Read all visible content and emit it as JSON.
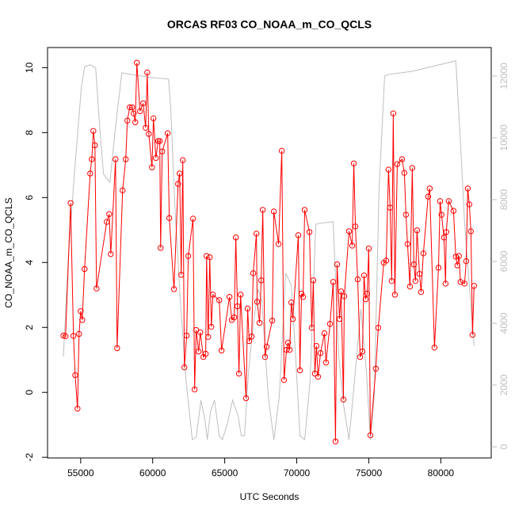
{
  "chart_data": {
    "type": "line",
    "title": "ORCAS RF03 CO_NOAA_m_CO_QCLS",
    "x_label": "UTC Seconds",
    "y_label": "CO_NOAA_m_CO_QCLS",
    "xlim": [
      52700,
      83500
    ],
    "xticks": [
      55000,
      60000,
      65000,
      70000,
      75000,
      80000
    ],
    "ylim": [
      -2.02,
      10.62
    ],
    "yticks": [
      -2,
      0,
      2,
      4,
      6,
      8,
      10
    ],
    "y2lim": [
      -360,
      12920
    ],
    "y2ticks": [
      0,
      2000,
      4000,
      6000,
      8000,
      10000,
      12000
    ],
    "grid": false,
    "series": [
      {
        "color": "#ff0000",
        "marker": "circle",
        "x": [
          53800,
          53950,
          54300,
          54500,
          54620,
          54780,
          54890,
          55000,
          55110,
          55270,
          55660,
          55770,
          55880,
          55990,
          56100,
          56810,
          56980,
          57090,
          57420,
          57530,
          57910,
          58130,
          58240,
          58410,
          58570,
          58680,
          58790,
          58900,
          59120,
          59340,
          59510,
          59620,
          59730,
          59950,
          60050,
          60220,
          60380,
          60490,
          60550,
          60660,
          61040,
          61150,
          61480,
          61760,
          61870,
          61980,
          62090,
          62200,
          62360,
          62470,
          62800,
          62910,
          63020,
          63190,
          63300,
          63520,
          63680,
          63740,
          63850,
          63960,
          64070,
          64180,
          64620,
          64780,
          65330,
          65490,
          65660,
          65770,
          65880,
          65990,
          66100,
          66480,
          66590,
          66700,
          66870,
          66980,
          67200,
          67250,
          67420,
          67530,
          67640,
          67800,
          67910,
          68300,
          68410,
          68740,
          68960,
          69120,
          69290,
          69400,
          69510,
          69620,
          69730,
          70110,
          70220,
          70330,
          70440,
          70550,
          70880,
          71040,
          71150,
          71260,
          71370,
          71480,
          71650,
          71920,
          72030,
          72310,
          72530,
          72690,
          72800,
          72970,
          73080,
          73240,
          73300,
          73630,
          73850,
          73960,
          74070,
          74230,
          74400,
          74560,
          74670,
          74780,
          74890,
          75000,
          75110,
          75490,
          75660,
          76040,
          76210,
          76370,
          76480,
          76590,
          76700,
          76810,
          76980,
          77310,
          77470,
          77580,
          77690,
          77860,
          78020,
          78130,
          78240,
          78350,
          78520,
          78630,
          78790,
          79120,
          79230,
          79560,
          79840,
          79950,
          80050,
          80220,
          80330,
          80380,
          80550,
          80880,
          81040,
          81150,
          81260,
          81370,
          81650,
          81760,
          81870,
          81980,
          82090,
          82200,
          82310
        ],
        "values": [
          1.75,
          1.73,
          5.83,
          1.74,
          0.53,
          -0.5,
          1.8,
          2.5,
          2.23,
          3.8,
          6.74,
          7.18,
          8.05,
          7.61,
          3.2,
          5.25,
          5.49,
          4.26,
          7.18,
          1.36,
          6.22,
          7.18,
          8.37,
          8.78,
          8.78,
          8.59,
          8.32,
          10.15,
          8.66,
          8.9,
          8.15,
          9.85,
          7.96,
          6.93,
          8.44,
          7.22,
          7.74,
          7.74,
          4.45,
          7.42,
          7.98,
          5.37,
          3.18,
          6.42,
          6.74,
          3.62,
          7.15,
          0.77,
          1.75,
          4.2,
          5.35,
          0.09,
          1.92,
          1.26,
          1.85,
          1.09,
          1.19,
          4.2,
          1.71,
          4.16,
          2.02,
          3.01,
          2.84,
          1.29,
          2.94,
          2.23,
          2.31,
          4.77,
          2.65,
          0.58,
          3.01,
          -0.18,
          2.58,
          1.58,
          1.72,
          3.67,
          4.89,
          2.79,
          2.14,
          3.45,
          5.62,
          1.09,
          1.41,
          2.21,
          5.57,
          4.57,
          7.44,
          0.38,
          1.31,
          1.53,
          1.31,
          2.77,
          2.26,
          4.84,
          0.68,
          3.04,
          2.94,
          5.62,
          4.94,
          1.99,
          3.45,
          0.58,
          1.43,
          0.48,
          1.21,
          1.82,
          0.92,
          2.11,
          3.4,
          -1.51,
          3.94,
          2.26,
          3.11,
          -0.22,
          2.96,
          4.96,
          4.52,
          7.05,
          5.11,
          3.48,
          1.09,
          1.26,
          3.6,
          2.87,
          3.04,
          4.43,
          -1.32,
          0.73,
          1.99,
          3.99,
          4.06,
          6.86,
          5.69,
          3.43,
          8.59,
          3.01,
          7.03,
          7.18,
          6.76,
          5.47,
          4.57,
          3.26,
          6.91,
          3.94,
          3.43,
          4.99,
          3.65,
          3.09,
          4.28,
          6.03,
          6.28,
          1.38,
          3.84,
          5.89,
          5.47,
          4.77,
          3.35,
          4.94,
          5.89,
          5.59,
          4.18,
          3.91,
          4.2,
          3.4,
          3.35,
          4.04,
          6.28,
          5.79,
          4.96,
          1.77,
          3.28
        ]
      },
      {
        "color": "#bebebe",
        "axis": "y2",
        "x": [
          53800,
          54130,
          54560,
          55050,
          55270,
          55660,
          56040,
          56320,
          56590,
          57030,
          57420,
          57860,
          58790,
          59890,
          61100,
          61260,
          61540,
          61920,
          62310,
          62750,
          63020,
          63350,
          63630,
          63790,
          64010,
          64290,
          64620,
          64840,
          65220,
          65550,
          65930,
          66150,
          66370,
          66650,
          66980,
          67310,
          67580,
          68020,
          68410,
          68790,
          69230,
          69620,
          69890,
          70220,
          70550,
          70930,
          71320,
          71540,
          72530,
          72910,
          73240,
          73630,
          74010,
          74450,
          74840,
          75110,
          75380,
          75710,
          76100,
          76370,
          78020,
          81040,
          81320,
          81650,
          81980,
          82310
        ],
        "values": [
          2920,
          6000,
          8820,
          11640,
          12300,
          12360,
          12260,
          10360,
          8820,
          8560,
          10360,
          12100,
          12030,
          11950,
          11900,
          10870,
          7790,
          4720,
          2150,
          230,
          310,
          1510,
          870,
          230,
          1130,
          1510,
          360,
          230,
          820,
          1510,
          1000,
          360,
          360,
          2410,
          3950,
          5100,
          4720,
          1640,
          230,
          1640,
          5620,
          5230,
          3180,
          360,
          230,
          2150,
          7200,
          7230,
          7280,
          2920,
          1380,
          230,
          2150,
          4460,
          2410,
          230,
          1640,
          8310,
          12000,
          12050,
          12150,
          12490,
          10230,
          7280,
          5230,
          3260
        ]
      }
    ]
  }
}
